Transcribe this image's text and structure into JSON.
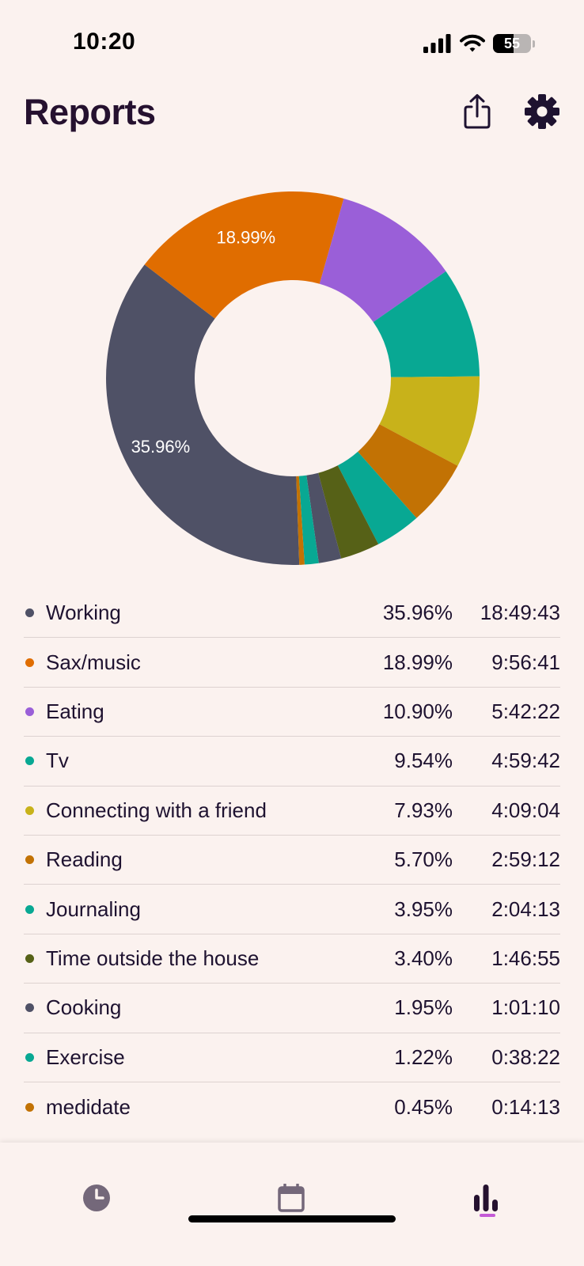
{
  "status_bar": {
    "time": "10:20",
    "battery": "55",
    "battery_level": 0.55
  },
  "header": {
    "title": "Reports",
    "share_icon": "share-icon",
    "settings_icon": "gear-icon"
  },
  "chart_data": {
    "type": "pie",
    "donut": true,
    "title": "",
    "slices": [
      {
        "label": "Working",
        "value": 35.96,
        "color": "#4f5166",
        "show_label": true
      },
      {
        "label": "Sax/music",
        "value": 18.99,
        "color": "#e06d00",
        "show_label": true
      },
      {
        "label": "Eating",
        "value": 10.9,
        "color": "#9a5fd8",
        "show_label": false
      },
      {
        "label": "Tv",
        "value": 9.54,
        "color": "#08a893",
        "show_label": false
      },
      {
        "label": "Connecting with a friend",
        "value": 7.93,
        "color": "#c8b21a",
        "show_label": false
      },
      {
        "label": "Reading",
        "value": 5.7,
        "color": "#c27204",
        "show_label": false
      },
      {
        "label": "Journaling",
        "value": 3.95,
        "color": "#08a893",
        "show_label": false
      },
      {
        "label": "Time outside the house",
        "value": 3.4,
        "color": "#566117",
        "show_label": false
      },
      {
        "label": "Cooking",
        "value": 1.95,
        "color": "#4f5166",
        "show_label": false
      },
      {
        "label": "Exercise",
        "value": 1.22,
        "color": "#08a893",
        "show_label": false
      },
      {
        "label": "medidate",
        "value": 0.45,
        "color": "#c27204",
        "show_label": false
      }
    ],
    "data_labels": [
      "35.96%",
      "18.99%"
    ]
  },
  "legend": [
    {
      "label": "Working",
      "percent": "35.96%",
      "duration": "18:49:43",
      "color": "#4f5166"
    },
    {
      "label": "Sax/music",
      "percent": "18.99%",
      "duration": "9:56:41",
      "color": "#e06d00"
    },
    {
      "label": "Eating",
      "percent": "10.90%",
      "duration": "5:42:22",
      "color": "#9a5fd8"
    },
    {
      "label": "Tv",
      "percent": "9.54%",
      "duration": "4:59:42",
      "color": "#08a893"
    },
    {
      "label": "Connecting with a friend",
      "percent": "7.93%",
      "duration": "4:09:04",
      "color": "#c8b21a"
    },
    {
      "label": "Reading",
      "percent": "5.70%",
      "duration": "2:59:12",
      "color": "#c27204"
    },
    {
      "label": "Journaling",
      "percent": "3.95%",
      "duration": "2:04:13",
      "color": "#08a893"
    },
    {
      "label": "Time outside the house",
      "percent": "3.40%",
      "duration": "1:46:55",
      "color": "#566117"
    },
    {
      "label": "Cooking",
      "percent": "1.95%",
      "duration": "1:01:10",
      "color": "#4f5166"
    },
    {
      "label": "Exercise",
      "percent": "1.22%",
      "duration": "0:38:22",
      "color": "#08a893"
    },
    {
      "label": "medidate",
      "percent": "0.45%",
      "duration": "0:14:13",
      "color": "#c27204"
    }
  ],
  "tab_bar": {
    "tabs": [
      {
        "icon": "clock-icon",
        "active": false
      },
      {
        "icon": "calendar-icon",
        "active": false
      },
      {
        "icon": "bar-chart-icon",
        "active": true
      }
    ],
    "active_color": "#c45ad6",
    "inactive_color": "#74687a"
  }
}
